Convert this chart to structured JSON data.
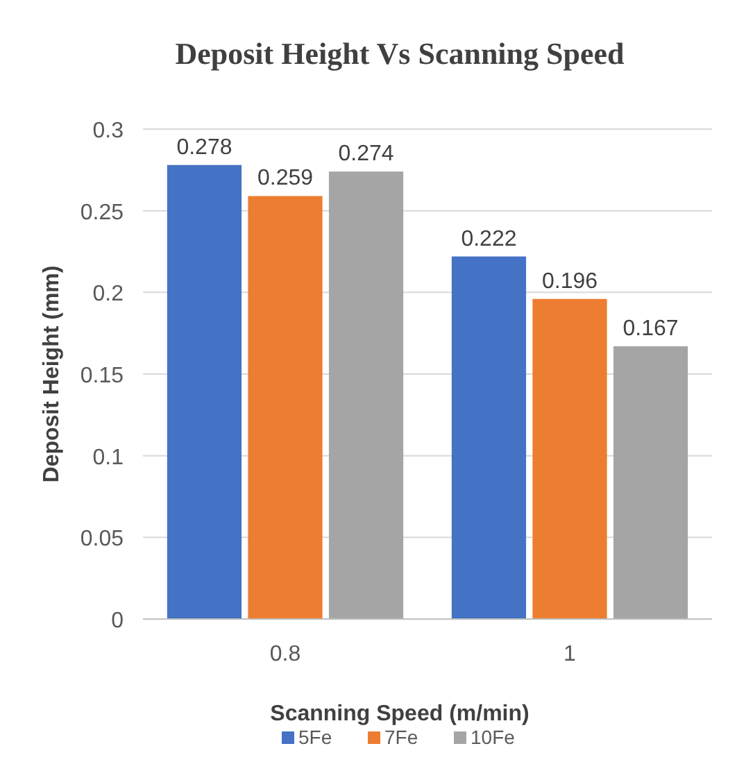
{
  "chart_data": {
    "type": "bar",
    "title": "Deposit Height Vs Scanning Speed",
    "xlabel": "Scanning Speed (m/min)",
    "ylabel": "Deposit Height (mm)",
    "categories": [
      "0.8",
      "1"
    ],
    "series": [
      {
        "name": "5Fe",
        "color": "#4472c4",
        "values": [
          0.278,
          0.222
        ]
      },
      {
        "name": "7Fe",
        "color": "#ed7d31",
        "values": [
          0.259,
          0.196
        ]
      },
      {
        "name": "10Fe",
        "color": "#a5a5a5",
        "values": [
          0.274,
          0.167
        ]
      }
    ],
    "ylim": [
      0,
      0.3
    ],
    "yticks": [
      0,
      0.05,
      0.1,
      0.15,
      0.2,
      0.25,
      0.3
    ],
    "grid": "y",
    "legend": "bottom",
    "data_labels": true
  }
}
